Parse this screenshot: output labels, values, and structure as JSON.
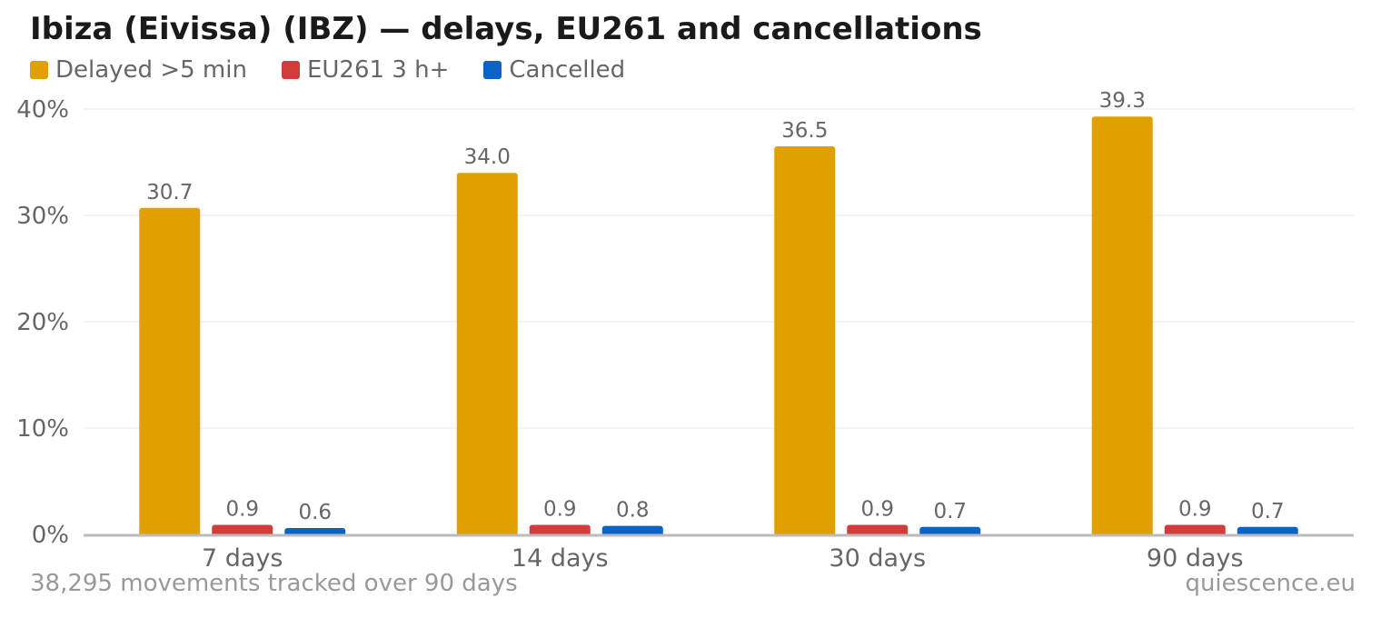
{
  "chart_data": {
    "type": "bar",
    "title": "Ibiza (Eivissa) (IBZ) — delays, EU261 and cancellations",
    "categories": [
      "7 days",
      "14 days",
      "30 days",
      "90 days"
    ],
    "series": [
      {
        "name": "Delayed >5 min",
        "values": [
          30.7,
          34.0,
          36.5,
          39.3
        ],
        "labels": [
          "30.7",
          "34.0",
          "36.5",
          "39.3"
        ],
        "color": "#e0a000"
      },
      {
        "name": "EU261 3 h+",
        "values": [
          0.9,
          0.9,
          0.9,
          0.9
        ],
        "labels": [
          "0.9",
          "0.9",
          "0.9",
          "0.9"
        ],
        "color": "#d43c3c"
      },
      {
        "name": "Cancelled",
        "values": [
          0.6,
          0.8,
          0.7,
          0.7
        ],
        "labels": [
          "0.6",
          "0.8",
          "0.7",
          "0.7"
        ],
        "color": "#0a64c8"
      }
    ],
    "ylim": [
      0,
      40
    ],
    "yticks": [
      "0%",
      "10%",
      "20%",
      "30%",
      "40%"
    ],
    "ytick_values": [
      0,
      10,
      20,
      30,
      40
    ],
    "xlabel": "",
    "ylabel": "",
    "grid": true,
    "legend_position": "top-left"
  },
  "footer": {
    "note": "38,295 movements tracked over 90 days",
    "source": "quiescence.eu"
  },
  "colors": {
    "text_dark": "#1a1a1a",
    "text_muted": "#666666",
    "text_light": "#999999",
    "grid": "#e8e8e8",
    "axis": "#bbbbbb"
  }
}
